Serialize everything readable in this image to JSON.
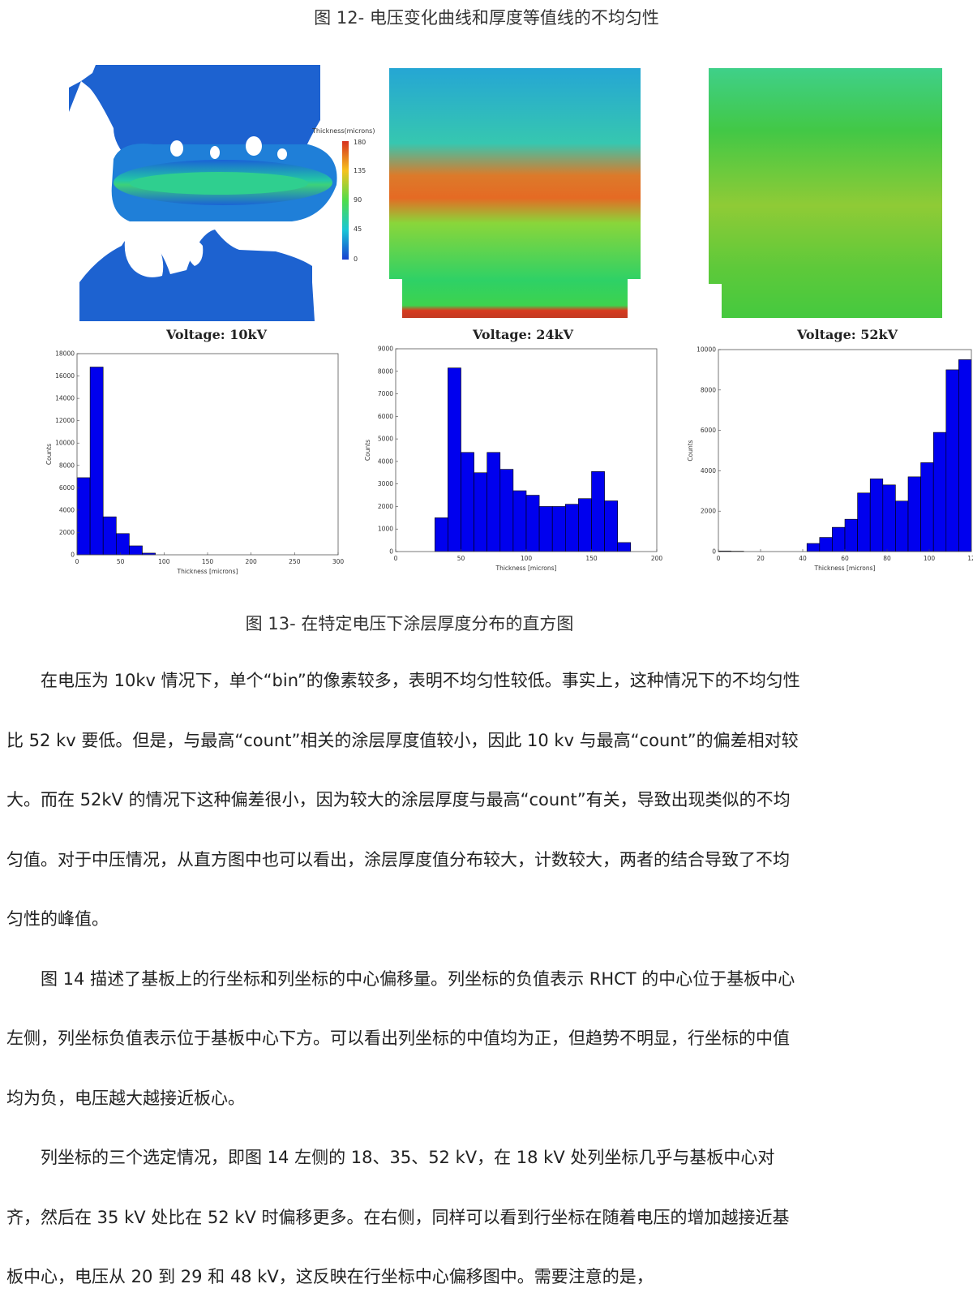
{
  "figure12": {
    "caption": "图 12-  电压变化曲线和厚度等值线的不均匀性"
  },
  "colorbar": {
    "title": "Thickness(microns)",
    "ticks": [
      "180",
      "135",
      "90",
      "45",
      "0"
    ]
  },
  "panels": [
    {
      "voltage_label": "Voltage: 10kV"
    },
    {
      "voltage_label": "Voltage: 24kV"
    },
    {
      "voltage_label": "Voltage: 52kV"
    }
  ],
  "figure13": {
    "caption": "图 13-  在特定电压下涂层厚度分布的直方图"
  },
  "chart_data": [
    {
      "type": "bar",
      "title": "",
      "xlabel": "Thickness [microns]",
      "ylabel": "Counts",
      "xlim": [
        0,
        300
      ],
      "ylim": [
        0,
        18000
      ],
      "xticks": [
        "0",
        "50",
        "100",
        "150",
        "200",
        "250",
        "300"
      ],
      "yticks": [
        "0",
        "2000",
        "4000",
        "6000",
        "8000",
        "10000",
        "12000",
        "14000",
        "16000",
        "18000"
      ],
      "bin_width": 15,
      "bins_start": [
        0,
        15,
        30,
        45,
        60,
        75
      ],
      "values": [
        6900,
        16800,
        3400,
        1900,
        800,
        150
      ],
      "color": "#0000ee"
    },
    {
      "type": "bar",
      "title": "",
      "xlabel": "Thickness [microns]",
      "ylabel": "Counts",
      "xlim": [
        0,
        200
      ],
      "ylim": [
        0,
        9000
      ],
      "xticks": [
        "0",
        "50",
        "100",
        "150",
        "200"
      ],
      "yticks": [
        "0",
        "1000",
        "2000",
        "3000",
        "4000",
        "5000",
        "6000",
        "7000",
        "8000",
        "9000"
      ],
      "bin_width": 10,
      "bins_start": [
        30,
        40,
        50,
        60,
        70,
        80,
        90,
        100,
        110,
        120,
        130,
        140,
        150,
        160,
        170
      ],
      "values": [
        1500,
        8150,
        4400,
        3500,
        4400,
        3650,
        2700,
        2500,
        2000,
        2000,
        2100,
        2350,
        3550,
        2250,
        400
      ],
      "color": "#0000ee"
    },
    {
      "type": "bar",
      "title": "",
      "xlabel": "Thickness [microns]",
      "ylabel": "Counts",
      "xlim": [
        0,
        120
      ],
      "ylim": [
        0,
        10000
      ],
      "xticks": [
        "0",
        "20",
        "40",
        "60",
        "80",
        "100",
        "12"
      ],
      "yticks": [
        "0",
        "2000",
        "4000",
        "6000",
        "8000",
        "10000"
      ],
      "bin_width": 6,
      "bins_start": [
        0,
        6,
        42,
        48,
        54,
        60,
        66,
        72,
        78,
        84,
        90,
        96,
        102,
        108,
        114
      ],
      "values": [
        30,
        20,
        400,
        700,
        1200,
        1600,
        2900,
        3600,
        3300,
        2500,
        3700,
        4400,
        5900,
        9000,
        9500
      ],
      "color": "#0000ee"
    }
  ],
  "body_paragraphs": [
    "在电压为 10kv 情况下，单个“bin”的像素较多，表明不均匀性较低。事实上，这种情况下的不均匀性比 52 kv 要低。但是，与最高“count”相关的涂层厚度值较小，因此 10 kv 与最高“count”的偏差相对较大。而在 52kV 的情况下这种偏差很小，因为较大的涂层厚度与最高“count”有关，导致出现类似的不均匀值。对于中压情况，从直方图中也可以看出，涂层厚度值分布较大，计数较大，两者的结合导致了不均匀性的峰值。",
    "图 14 描述了基板上的行坐标和列坐标的中心偏移量。列坐标的负值表示 RHCT 的中心位于基板中心左侧，列坐标负值表示位于基板中心下方。可以看出列坐标的中值均为正，但趋势不明显，行坐标的中值均为负，电压越大越接近板心。",
    "列坐标的三个选定情况，即图 14 左侧的 18、35、52 kV，在 18 kV 处列坐标几乎与基板中心对齐，然后在 35 kV 处比在 52 kV 时偏移更多。在右侧，同样可以看到行坐标在随着电压的增加越接近基板中心，电压从 20 到 29 和 48 kV，这反映在行坐标中心偏移图中。需要注意的是，"
  ]
}
